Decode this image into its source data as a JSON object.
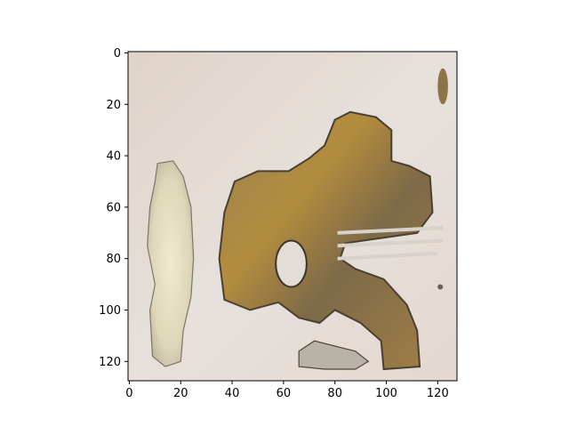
{
  "chart_data": {
    "type": "image",
    "title": "",
    "xlabel": "",
    "ylabel": "",
    "image_size": [
      128,
      128
    ],
    "xlim": [
      -0.5,
      127.5
    ],
    "ylim": [
      127.5,
      -0.5
    ],
    "x_ticks": [
      0,
      20,
      40,
      60,
      80,
      100,
      120
    ],
    "y_ticks": [
      0,
      20,
      40,
      60,
      80,
      100,
      120
    ],
    "grid": false,
    "colors": {
      "background": "#e3dcd6",
      "left_blob": "#e8e2c8",
      "main_blob": "#8a7248",
      "main_blob_highlight": "#c59a3a",
      "shadow": "#5a4b38",
      "frame": "#000000"
    }
  }
}
